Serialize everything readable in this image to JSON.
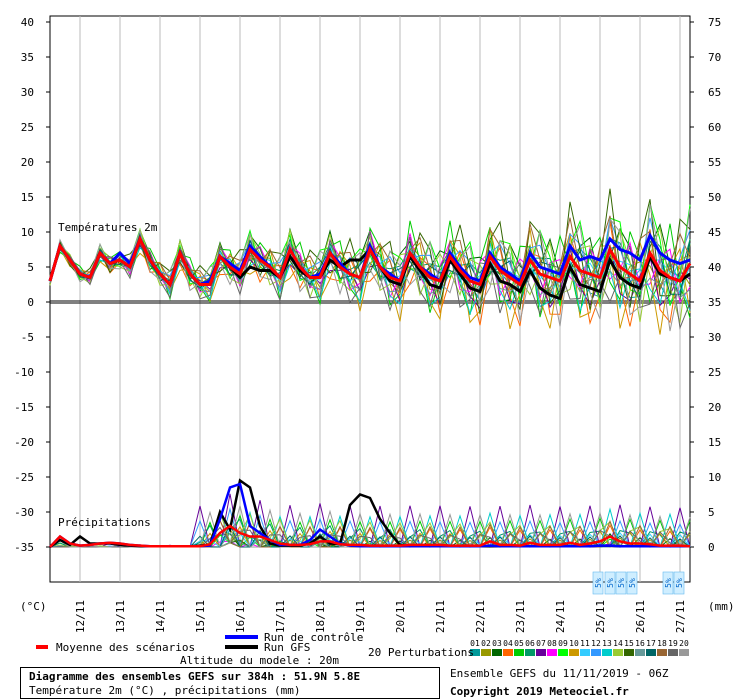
{
  "chart_data": {
    "type": "line",
    "panels": {
      "temperature": {
        "label": "Températures 2m",
        "y_left_ticks": [
          40,
          35,
          30,
          25,
          20,
          15,
          10,
          5,
          0,
          -5,
          -10,
          -15,
          -20,
          -25,
          -30,
          -35
        ],
        "y_right_ticks": [
          75,
          70,
          65,
          60,
          55,
          50,
          45,
          40,
          35,
          30,
          25,
          20,
          15,
          10,
          5,
          0
        ],
        "ylim": [
          -35,
          40
        ],
        "x_days": [
          "12/11",
          "13/11",
          "14/11",
          "15/11",
          "16/11",
          "17/11",
          "18/11",
          "19/11",
          "20/11",
          "21/11",
          "22/11",
          "23/11",
          "24/11",
          "25/11",
          "26/11",
          "27/11"
        ],
        "x_hours": [
          0,
          6,
          12,
          18,
          24,
          30,
          36,
          42,
          48,
          54,
          60,
          66,
          72,
          78,
          84,
          90,
          96,
          102,
          108,
          114,
          120,
          126,
          132,
          138,
          144,
          150,
          156,
          162,
          168,
          174,
          180,
          186,
          192,
          198,
          204,
          210,
          216,
          222,
          228,
          234,
          240,
          246,
          252,
          258,
          264,
          270,
          276,
          282,
          288,
          294,
          300,
          306,
          312,
          318,
          324,
          330,
          336,
          342,
          348,
          354,
          360,
          366,
          372,
          378,
          384
        ],
        "series": [
          {
            "name": "Moyenne des scénarios",
            "color": "#ff0000",
            "values": [
              3.0,
              8.0,
              6.0,
              4.0,
              3.5,
              7.0,
              5.5,
              6.0,
              5.0,
              9.0,
              6.0,
              4.0,
              2.5,
              7.0,
              4.0,
              2.5,
              2.5,
              6.5,
              5.0,
              4.0,
              7.5,
              6.0,
              5.0,
              3.5,
              7.5,
              5.0,
              3.5,
              3.5,
              7.0,
              5.0,
              4.0,
              3.5,
              7.5,
              5.0,
              3.5,
              3.0,
              7.0,
              5.0,
              3.5,
              3.0,
              6.5,
              4.5,
              3.0,
              2.5,
              6.5,
              4.5,
              3.5,
              2.5,
              6.0,
              4.0,
              3.5,
              3.0,
              6.5,
              4.5,
              4.0,
              3.5,
              7.5,
              5.0,
              4.0,
              3.0,
              7.0,
              4.5,
              3.5,
              3.0,
              5.5
            ]
          },
          {
            "name": "Run de contrôle",
            "color": "#0000ff",
            "values": [
              3.0,
              8.0,
              6.0,
              4.0,
              3.5,
              7.0,
              5.5,
              7.0,
              5.5,
              9.0,
              6.0,
              4.0,
              2.5,
              7.0,
              4.0,
              2.5,
              3.0,
              6.5,
              5.5,
              4.5,
              8.0,
              6.5,
              5.0,
              3.5,
              7.5,
              5.0,
              3.5,
              4.0,
              7.0,
              5.5,
              4.0,
              3.5,
              8.0,
              5.0,
              4.0,
              3.0,
              7.0,
              5.0,
              4.0,
              3.0,
              7.0,
              5.0,
              3.5,
              3.0,
              7.0,
              5.0,
              4.0,
              3.0,
              7.0,
              5.0,
              4.5,
              4.0,
              8.0,
              6.0,
              6.5,
              6.0,
              9.0,
              7.5,
              7.0,
              6.0,
              9.5,
              7.0,
              6.0,
              5.5,
              6.0
            ]
          },
          {
            "name": "Run GFS",
            "color": "#000000",
            "values": [
              3.0,
              8.0,
              6.0,
              4.0,
              3.5,
              7.0,
              5.5,
              6.0,
              5.0,
              9.0,
              6.0,
              4.0,
              2.5,
              7.0,
              4.0,
              2.5,
              2.5,
              6.5,
              5.0,
              3.5,
              5.0,
              4.5,
              4.5,
              3.5,
              6.5,
              4.5,
              3.5,
              3.5,
              6.0,
              5.0,
              6.0,
              6.0,
              7.5,
              5.0,
              3.0,
              2.5,
              6.5,
              4.5,
              2.5,
              2.0,
              6.0,
              4.0,
              2.0,
              1.5,
              5.5,
              3.0,
              2.5,
              1.5,
              4.5,
              2.0,
              1.0,
              0.5,
              5.0,
              2.5,
              2.0,
              1.5,
              6.0,
              3.5,
              2.5,
              2.0,
              6.5,
              4.0,
              3.5,
              3.0,
              4.0
            ]
          }
        ]
      },
      "precipitation": {
        "label": "Précipitations",
        "y_right_ticks": [
          0,
          5,
          10,
          15,
          20,
          25,
          30,
          35
        ],
        "series": [
          {
            "name": "Moyenne des scénarios",
            "color": "#ff0000",
            "values": [
              0.0,
              1.5,
              0.5,
              0.2,
              0.3,
              0.5,
              0.6,
              0.5,
              0.3,
              0.2,
              0.1,
              0.1,
              0.1,
              0.1,
              0.1,
              0.1,
              0.4,
              2.0,
              3.0,
              2.0,
              1.5,
              1.5,
              1.0,
              0.5,
              0.3,
              0.3,
              0.4,
              0.8,
              0.8,
              0.4,
              0.3,
              0.3,
              0.2,
              0.2,
              0.2,
              0.2,
              0.3,
              0.3,
              0.3,
              0.3,
              0.2,
              0.2,
              0.2,
              0.2,
              0.8,
              0.3,
              0.3,
              0.2,
              0.6,
              0.3,
              0.3,
              0.3,
              0.6,
              0.3,
              0.5,
              0.8,
              1.5,
              0.8,
              0.5,
              0.5,
              0.4,
              0.2,
              0.2,
              0.2,
              0.1
            ]
          },
          {
            "name": "Run de contrôle",
            "color": "#0000ff",
            "values": [
              0.0,
              1.5,
              0.5,
              0.2,
              0.3,
              0.5,
              0.6,
              0.5,
              0.3,
              0.2,
              0.1,
              0.1,
              0.1,
              0.1,
              0.1,
              0.1,
              0.2,
              4.0,
              8.5,
              9.0,
              3.0,
              2.0,
              1.0,
              0.3,
              0.3,
              0.3,
              1.0,
              2.5,
              1.5,
              0.5,
              0.2,
              0.1,
              0.1,
              0.1,
              0.1,
              0.1,
              0.1,
              0.1,
              0.1,
              0.1,
              0.1,
              0.1,
              0.1,
              0.1,
              0.2,
              0.1,
              0.1,
              0.1,
              0.1,
              0.1,
              0.1,
              0.1,
              0.1,
              0.1,
              0.1,
              0.2,
              0.2,
              0.1,
              0.1,
              0.1,
              0.1,
              0.1,
              0.1,
              0.1,
              0.1
            ]
          },
          {
            "name": "Run GFS",
            "color": "#000000",
            "values": [
              0.0,
              1.0,
              0.3,
              1.5,
              0.5,
              0.5,
              0.5,
              0.3,
              0.2,
              0.1,
              0.1,
              0.1,
              0.1,
              0.1,
              0.1,
              0.2,
              0.3,
              5.0,
              2.5,
              9.5,
              8.5,
              3.0,
              0.5,
              0.2,
              0.2,
              0.2,
              0.5,
              1.5,
              0.5,
              0.4,
              6.0,
              7.5,
              7.0,
              4.0,
              2.0,
              0.3,
              0.2,
              0.2,
              0.1,
              0.1,
              0.1,
              0.1,
              0.1,
              0.1,
              0.1,
              0.1,
              0.1,
              0.1,
              0.1,
              0.1,
              0.1,
              0.1,
              0.1,
              0.1,
              0.1,
              0.2,
              0.2,
              0.1,
              0.1,
              0.1,
              0.1,
              0.1,
              0.1,
              0.1,
              0.1
            ]
          }
        ]
      }
    },
    "perturbation_colors": [
      "#009999",
      "#999900",
      "#006600",
      "#ff6600",
      "#00cc00",
      "#009966",
      "#660099",
      "#ff00ff",
      "#00ff00",
      "#cc9900",
      "#33ccff",
      "#3399ff",
      "#00cccc",
      "#99cc33",
      "#336600",
      "#669999",
      "#006666",
      "#996633",
      "#666666",
      "#999999"
    ],
    "perturbation_ids": [
      "01",
      "02",
      "03",
      "04",
      "05",
      "06",
      "07",
      "08",
      "09",
      "10",
      "11",
      "12",
      "13",
      "14",
      "15",
      "16",
      "17",
      "18",
      "19",
      "20"
    ],
    "snow_icons": [
      "5%",
      "5%",
      "5%",
      "5%",
      "5%",
      "5%"
    ]
  },
  "labels": {
    "unit_left": "(°C)",
    "unit_right": "(mm)",
    "legend_mean": "Moyenne des scénarios",
    "legend_control": "Run de contrôle",
    "legend_gfs": "Run GFS",
    "legend_perturbations": "20 Perturbations",
    "altitude": "Altitude du modele : 20m",
    "box_line1": "Diagramme des ensembles GEFS sur 384h : 51.9N 5.8E",
    "box_line2": "Température 2m (°C) , précipitations (mm)",
    "run_info": "Ensemble GEFS du 11/11/2019 - 06Z",
    "copyright": "Copyright 2019 Meteociel.fr"
  }
}
